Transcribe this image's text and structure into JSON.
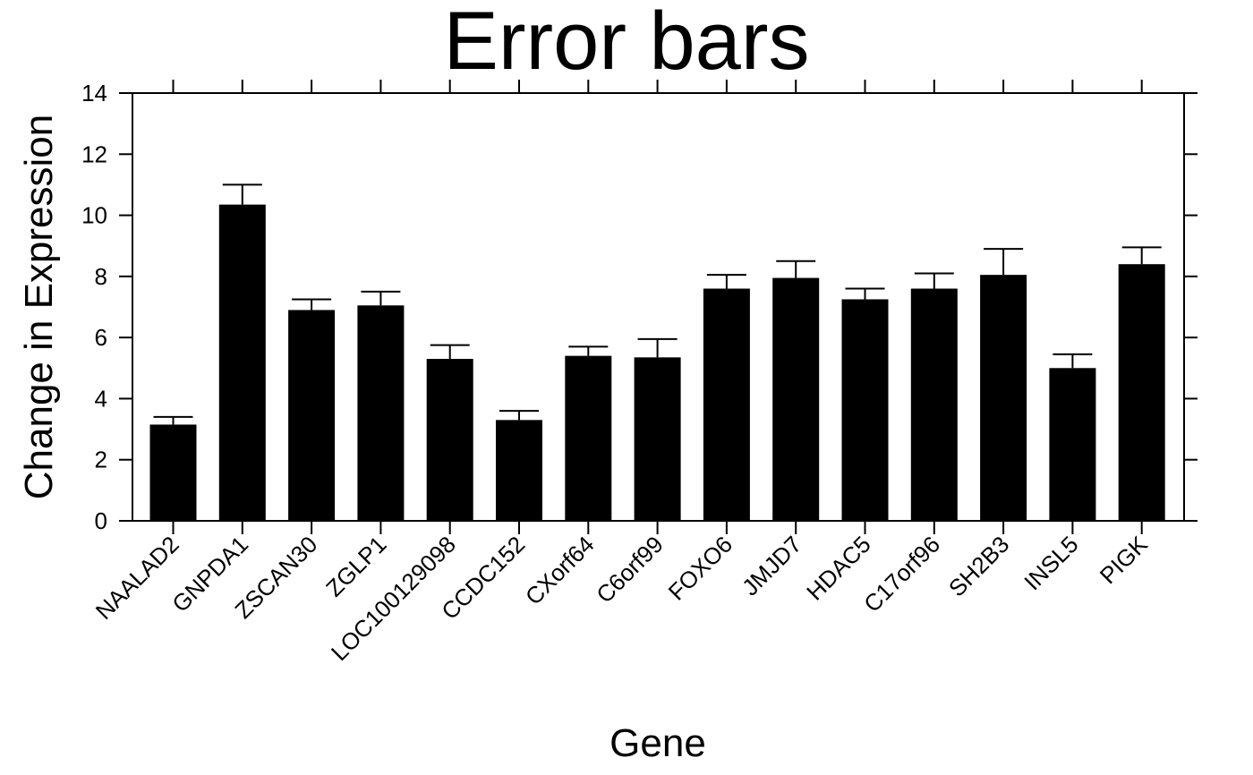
{
  "chart_data": {
    "type": "bar",
    "title": "Error bars",
    "xlabel": "Gene",
    "ylabel": "Change in Expression",
    "ylim": [
      0,
      14
    ],
    "yticks": [
      0,
      2,
      4,
      6,
      8,
      10,
      12,
      14
    ],
    "grid": false,
    "categories": [
      "NAALAD2",
      "GNPDA1",
      "ZSCAN30",
      "ZGLP1",
      "LOC100129098",
      "CCDC152",
      "CXorf64",
      "C6orf99",
      "FOXO6",
      "JMJD7",
      "HDAC5",
      "C17orf96",
      "SH2B3",
      "INSL5",
      "PIGK"
    ],
    "values": [
      3.15,
      10.35,
      6.9,
      7.05,
      5.3,
      3.3,
      5.4,
      5.35,
      7.6,
      7.95,
      7.25,
      7.6,
      8.05,
      5.0,
      8.4
    ],
    "error_upper": [
      0.25,
      0.65,
      0.35,
      0.45,
      0.45,
      0.3,
      0.3,
      0.6,
      0.45,
      0.55,
      0.35,
      0.5,
      0.85,
      0.45,
      0.55
    ],
    "colors": {
      "bar": "#000000",
      "axis": "#000000",
      "background": "#ffffff"
    }
  }
}
